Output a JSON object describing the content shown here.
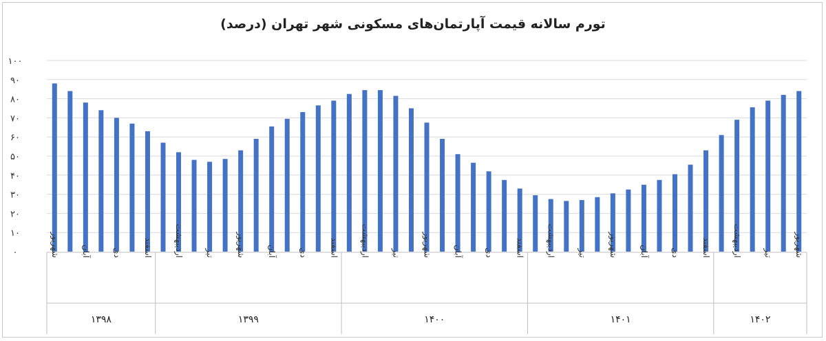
{
  "chart_data": {
    "type": "bar",
    "title": "تورم سالانه قیمت آپارتمان‌های مسکونی شهر تهران (درصد)",
    "xlabel": "",
    "ylabel": "",
    "ylim": [
      0,
      100
    ],
    "y_ticks": [
      {
        "value": 0,
        "label": "۰"
      },
      {
        "value": 10,
        "label": "۱۰"
      },
      {
        "value": 20,
        "label": "۲۰"
      },
      {
        "value": 30,
        "label": "۳۰"
      },
      {
        "value": 40,
        "label": "۴۰"
      },
      {
        "value": 50,
        "label": "۵۰"
      },
      {
        "value": 60,
        "label": "۶۰"
      },
      {
        "value": 70,
        "label": "۷۰"
      },
      {
        "value": 80,
        "label": "۸۰"
      },
      {
        "value": 90,
        "label": "۹۰"
      },
      {
        "value": 100,
        "label": "۱۰۰"
      }
    ],
    "grid": true,
    "bar_color": "#4472C4",
    "values": [
      88,
      84,
      78,
      74,
      70,
      67,
      63,
      57,
      52,
      48,
      47,
      48.5,
      53,
      59,
      65.5,
      69.5,
      73,
      76.5,
      79,
      82.5,
      84.5,
      84.5,
      81.5,
      75,
      67.5,
      59,
      51,
      46.5,
      42,
      37.5,
      33,
      29.5,
      27.5,
      26.5,
      27,
      28.5,
      30.5,
      32.5,
      35,
      37.5,
      40.5,
      45.5,
      53,
      61,
      69,
      75.5,
      79,
      82,
      84
    ],
    "category_labels": [
      {
        "index": 0,
        "label": "شهریور"
      },
      {
        "index": 2,
        "label": "آبان"
      },
      {
        "index": 4,
        "label": "دی"
      },
      {
        "index": 6,
        "label": "اسفند"
      },
      {
        "index": 8,
        "label": "اردیبهشت"
      },
      {
        "index": 10,
        "label": "تیر"
      },
      {
        "index": 12,
        "label": "شهریور"
      },
      {
        "index": 14,
        "label": "آبان"
      },
      {
        "index": 16,
        "label": "دی"
      },
      {
        "index": 18,
        "label": "اسفند"
      },
      {
        "index": 20,
        "label": "اردیبهشت"
      },
      {
        "index": 22,
        "label": "تیر"
      },
      {
        "index": 24,
        "label": "شهریور"
      },
      {
        "index": 26,
        "label": "آبان"
      },
      {
        "index": 28,
        "label": "دی"
      },
      {
        "index": 30,
        "label": "اسفند"
      },
      {
        "index": 32,
        "label": "اردیبهشت"
      },
      {
        "index": 34,
        "label": "تیر"
      },
      {
        "index": 36,
        "label": "شهریور"
      },
      {
        "index": 38,
        "label": "آبان"
      },
      {
        "index": 40,
        "label": "دی"
      },
      {
        "index": 42,
        "label": "اسفند"
      },
      {
        "index": 44,
        "label": "اردیبهشت"
      },
      {
        "index": 46,
        "label": "تیر"
      },
      {
        "index": 48,
        "label": "شهریور"
      }
    ],
    "year_groups": [
      {
        "label": "۱۳۹۸",
        "start": 0,
        "end": 6
      },
      {
        "label": "۱۳۹۹",
        "start": 7,
        "end": 18
      },
      {
        "label": "۱۴۰۰",
        "start": 19,
        "end": 30
      },
      {
        "label": "۱۴۰۱",
        "start": 31,
        "end": 42
      },
      {
        "label": "۱۴۰۲",
        "start": 43,
        "end": 48
      }
    ]
  }
}
